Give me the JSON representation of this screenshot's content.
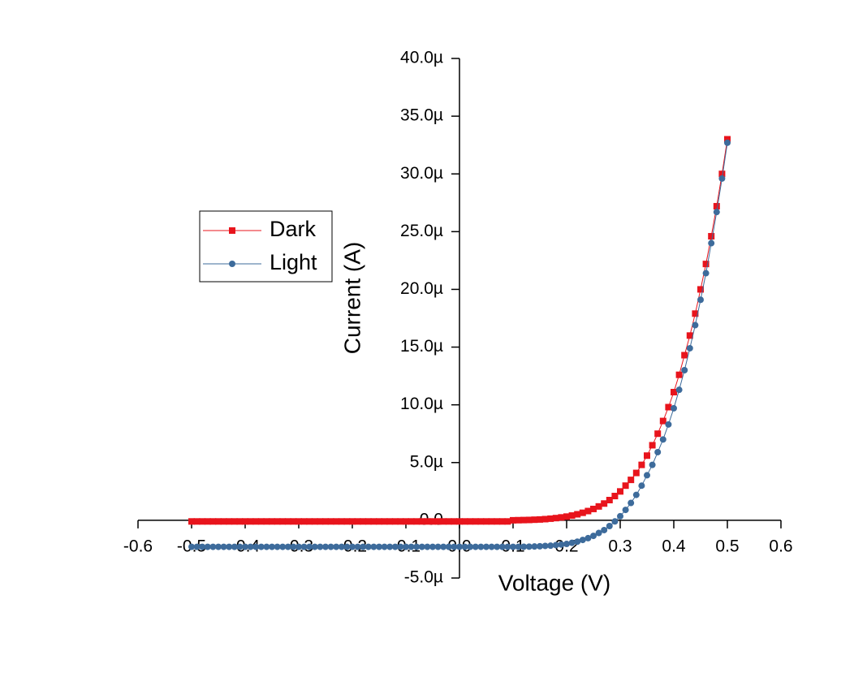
{
  "chart_data": {
    "type": "line",
    "xlabel": "Voltage (V)",
    "ylabel": "Current (A)",
    "x": [
      -0.5,
      -0.49,
      -0.48,
      -0.47,
      -0.46,
      -0.45,
      -0.44,
      -0.43,
      -0.42,
      -0.41,
      -0.4,
      -0.39,
      -0.38,
      -0.37,
      -0.36,
      -0.35,
      -0.34,
      -0.33,
      -0.32,
      -0.31,
      -0.3,
      -0.29,
      -0.28,
      -0.27,
      -0.26,
      -0.25,
      -0.24,
      -0.23,
      -0.22,
      -0.21,
      -0.2,
      -0.19,
      -0.18,
      -0.17,
      -0.16,
      -0.15,
      -0.14,
      -0.13,
      -0.12,
      -0.11,
      -0.1,
      -0.09,
      -0.08,
      -0.07,
      -0.06,
      -0.05,
      -0.04,
      -0.03,
      -0.02,
      -0.01,
      0,
      0.01,
      0.02,
      0.03,
      0.04,
      0.05,
      0.06,
      0.07,
      0.08,
      0.09,
      0.1,
      0.11,
      0.12,
      0.13,
      0.14,
      0.15,
      0.16,
      0.17,
      0.18,
      0.19,
      0.2,
      0.21,
      0.22,
      0.23,
      0.24,
      0.25,
      0.26,
      0.27,
      0.28,
      0.29,
      0.3,
      0.31,
      0.32,
      0.33,
      0.34,
      0.35,
      0.36,
      0.37,
      0.38,
      0.39,
      0.4,
      0.41,
      0.42,
      0.43,
      0.44,
      0.45,
      0.46,
      0.47,
      0.48,
      0.49,
      0.5
    ],
    "series": [
      {
        "name": "Dark",
        "color": "#e8141c",
        "marker": "square",
        "values": [
          -1e-07,
          -1e-07,
          -1e-07,
          -1e-07,
          -1e-07,
          -1e-07,
          -1e-07,
          -1e-07,
          -1e-07,
          -1e-07,
          -1e-07,
          -1e-07,
          -1e-07,
          -1e-07,
          -1e-07,
          -1e-07,
          -1e-07,
          -1e-07,
          -1e-07,
          -1e-07,
          -1e-07,
          -1e-07,
          -1e-07,
          -1e-07,
          -1e-07,
          -1e-07,
          -1e-07,
          -1e-07,
          -1e-07,
          -1e-07,
          -1e-07,
          -1e-07,
          -1e-07,
          -1e-07,
          -1e-07,
          -1e-07,
          -1e-07,
          -1e-07,
          -1e-07,
          -1e-07,
          -1e-07,
          -1e-07,
          -1e-07,
          -1e-07,
          -1e-07,
          -1e-07,
          -1e-07,
          -1e-07,
          -1e-07,
          -1e-07,
          -1e-07,
          -1e-07,
          -1e-07,
          -1e-07,
          -1e-07,
          -1e-07,
          -1e-07,
          -1e-07,
          -1e-07,
          -1e-07,
          0,
          1e-08,
          2e-08,
          3e-08,
          5e-08,
          7e-08,
          1e-07,
          1.4e-07,
          1.9e-07,
          2.5e-07,
          3.2e-07,
          4.1e-07,
          5.2e-07,
          6.5e-07,
          8e-07,
          9.8e-07,
          1.2e-06,
          1.45e-06,
          1.75e-06,
          2.1e-06,
          2.5e-06,
          3e-06,
          3.5e-06,
          4.1e-06,
          4.8e-06,
          5.6e-06,
          6.5e-06,
          7.5e-06,
          8.6e-06,
          9.8e-06,
          1.11e-05,
          1.26e-05,
          1.43e-05,
          1.6e-05,
          1.79e-05,
          2e-05,
          2.22e-05,
          2.46e-05,
          2.72e-05,
          3e-05,
          3.3e-05
        ]
      },
      {
        "name": "Light",
        "color": "#3d6b9b",
        "marker": "circle",
        "values": [
          -2.3e-06,
          -2.3e-06,
          -2.3e-06,
          -2.3e-06,
          -2.3e-06,
          -2.3e-06,
          -2.3e-06,
          -2.3e-06,
          -2.3e-06,
          -2.3e-06,
          -2.3e-06,
          -2.3e-06,
          -2.3e-06,
          -2.3e-06,
          -2.3e-06,
          -2.3e-06,
          -2.3e-06,
          -2.3e-06,
          -2.3e-06,
          -2.3e-06,
          -2.3e-06,
          -2.3e-06,
          -2.3e-06,
          -2.3e-06,
          -2.3e-06,
          -2.3e-06,
          -2.3e-06,
          -2.3e-06,
          -2.3e-06,
          -2.3e-06,
          -2.3e-06,
          -2.3e-06,
          -2.3e-06,
          -2.3e-06,
          -2.3e-06,
          -2.3e-06,
          -2.3e-06,
          -2.3e-06,
          -2.3e-06,
          -2.3e-06,
          -2.3e-06,
          -2.3e-06,
          -2.3e-06,
          -2.3e-06,
          -2.3e-06,
          -2.3e-06,
          -2.3e-06,
          -2.3e-06,
          -2.3e-06,
          -2.3e-06,
          -2.3e-06,
          -2.3e-06,
          -2.3e-06,
          -2.3e-06,
          -2.3e-06,
          -2.3e-06,
          -2.3e-06,
          -2.3e-06,
          -2.3e-06,
          -2.3e-06,
          -2.3e-06,
          -2.3e-06,
          -2.29e-06,
          -2.28e-06,
          -2.27e-06,
          -2.25e-06,
          -2.22e-06,
          -2.2e-06,
          -2.15e-06,
          -2.1e-06,
          -2.05e-06,
          -1.95e-06,
          -1.85e-06,
          -1.7e-06,
          -1.55e-06,
          -1.35e-06,
          -1.1e-06,
          -8.5e-07,
          -5e-07,
          -1e-07,
          3.5e-07,
          9e-07,
          1.5e-06,
          2.2e-06,
          3e-06,
          3.9e-06,
          4.8e-06,
          5.9e-06,
          7e-06,
          8.3e-06,
          9.7e-06,
          1.13e-05,
          1.3e-05,
          1.49e-05,
          1.69e-05,
          1.91e-05,
          2.14e-05,
          2.4e-05,
          2.67e-05,
          2.96e-05,
          3.27e-05
        ]
      }
    ],
    "xlim": [
      -0.6,
      0.6
    ],
    "xticks": [
      -0.6,
      -0.5,
      -0.4,
      -0.3,
      -0.2,
      -0.1,
      {
        "value": 0,
        "label": "0.0"
      },
      0.1,
      0.2,
      0.3,
      0.4,
      0.5,
      0.6
    ],
    "ylim": [
      -5e-06,
      4e-05
    ],
    "yticks": [
      {
        "value": -5e-06,
        "label": "-5.0µ"
      },
      {
        "value": 0,
        "label": "0.0"
      },
      {
        "value": 5e-06,
        "label": "5.0µ"
      },
      {
        "value": 1e-05,
        "label": "10.0µ"
      },
      {
        "value": 1.5e-05,
        "label": "15.0µ"
      },
      {
        "value": 2e-05,
        "label": "20.0µ"
      },
      {
        "value": 2.5e-05,
        "label": "25.0µ"
      },
      {
        "value": 3e-05,
        "label": "30.0µ"
      },
      {
        "value": 3.5e-05,
        "label": "35.0µ"
      },
      {
        "value": 4e-05,
        "label": "40.0µ"
      }
    ],
    "grid": false,
    "legend": "left"
  }
}
